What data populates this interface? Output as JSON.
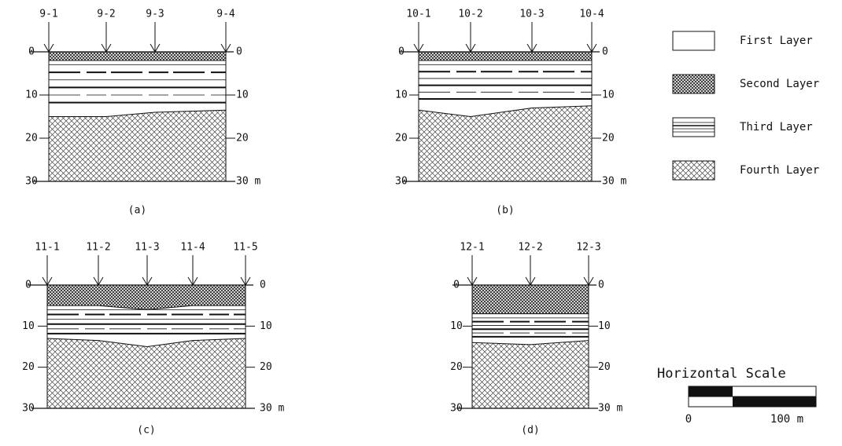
{
  "panels": [
    {
      "label": "(a)",
      "boreholes": [
        "9-1",
        "9-2",
        "9-3",
        "9-4"
      ],
      "left_depths": [
        "0",
        "10",
        "20",
        "30"
      ],
      "right_depths": [
        "0",
        "10",
        "20",
        "30 m"
      ]
    },
    {
      "label": "(b)",
      "boreholes": [
        "10-1",
        "10-2",
        "10-3",
        "10-4"
      ],
      "left_depths": [
        "0",
        "10",
        "20",
        "30"
      ],
      "right_depths": [
        "0",
        "10",
        "20",
        "30 m"
      ]
    },
    {
      "label": "(c)",
      "boreholes": [
        "11-1",
        "11-2",
        "11-3",
        "11-4",
        "11-5"
      ],
      "left_depths": [
        "0",
        "10",
        "20",
        "30"
      ],
      "right_depths": [
        "0",
        "10",
        "20",
        "30 m"
      ]
    },
    {
      "label": "(d)",
      "boreholes": [
        "12-1",
        "12-2",
        "12-3"
      ],
      "left_depths": [
        "0",
        "10",
        "20",
        "30"
      ],
      "right_depths": [
        "0",
        "10",
        "20",
        "30 m"
      ]
    }
  ],
  "legend": [
    "First Layer",
    "Second Layer",
    "Third Layer",
    "Fourth Layer"
  ],
  "scale": {
    "title": "Horizontal Scale",
    "start": "0",
    "end": "100 m"
  }
}
